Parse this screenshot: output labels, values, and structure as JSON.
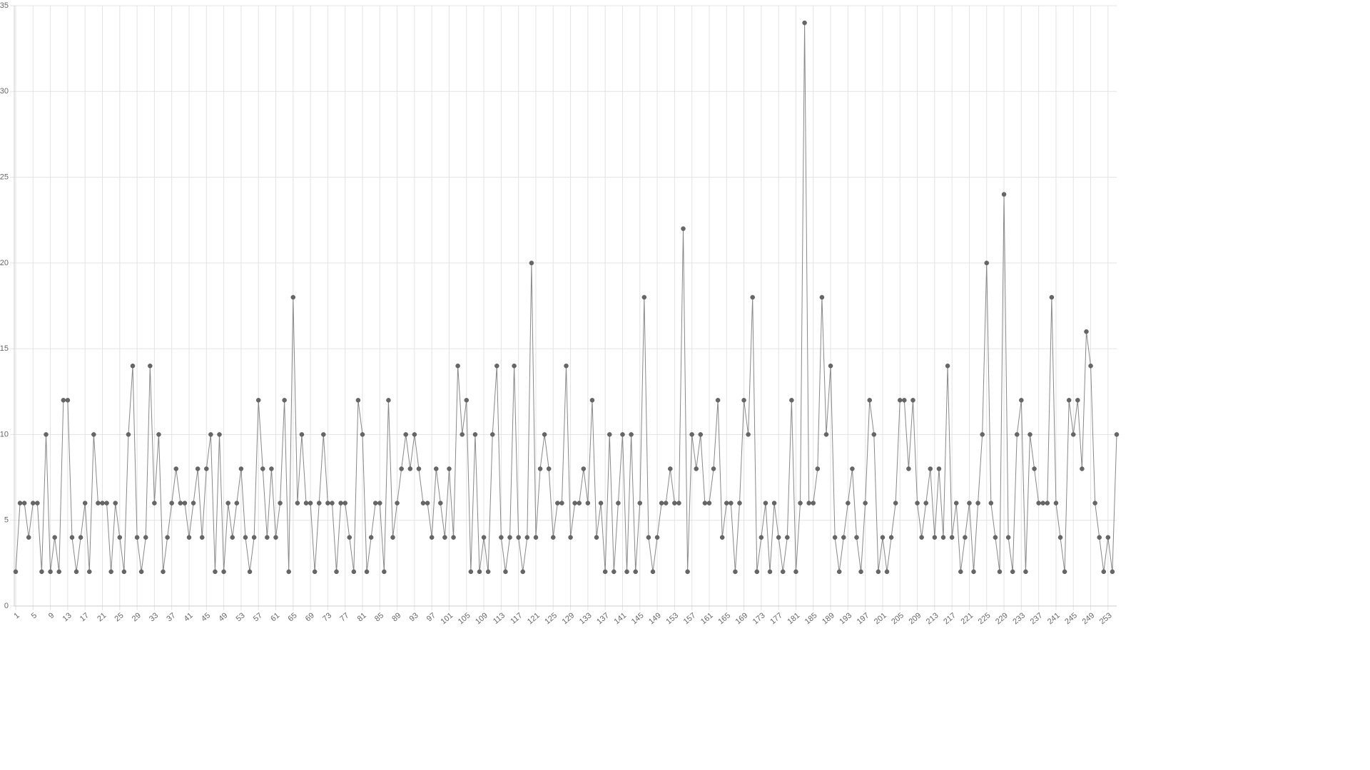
{
  "chart_data": {
    "type": "line",
    "categories": [
      1,
      null,
      null,
      null,
      5,
      null,
      null,
      null,
      9,
      null,
      null,
      null,
      13,
      null,
      null,
      null,
      17,
      null,
      null,
      null,
      21,
      null,
      null,
      null,
      25,
      null,
      null,
      null,
      29,
      null,
      null,
      null,
      33,
      null,
      null,
      null,
      37,
      null,
      null,
      null,
      41,
      null,
      null,
      null,
      45,
      null,
      null,
      null,
      49,
      null,
      null,
      null,
      53,
      null,
      null,
      null,
      57,
      null,
      null,
      null,
      61,
      null,
      null,
      null,
      65,
      null,
      null,
      null,
      69,
      null,
      null,
      null,
      73,
      null,
      null,
      null,
      77,
      null,
      null,
      null,
      81,
      null,
      null,
      null,
      85,
      null,
      null,
      null,
      89,
      null,
      null,
      null,
      93,
      null,
      null,
      null,
      97,
      null,
      null,
      null,
      101,
      null,
      null,
      null,
      105,
      null,
      null,
      null,
      109,
      null,
      null,
      null,
      113,
      null,
      null,
      null,
      117,
      null,
      null,
      null,
      121,
      null,
      null,
      null,
      125,
      null,
      null,
      null,
      129,
      null,
      null,
      null,
      133,
      null,
      null,
      null,
      137,
      null,
      null,
      null,
      141,
      null,
      null,
      null,
      145,
      null,
      null,
      null,
      149,
      null,
      null,
      null,
      153,
      null,
      null,
      null,
      157,
      null,
      null,
      null,
      161,
      null,
      null,
      null,
      165,
      null,
      null,
      null,
      169,
      null,
      null,
      null,
      173,
      null,
      null,
      null,
      177,
      null,
      null,
      null,
      181,
      null,
      null,
      null,
      185,
      null,
      null,
      null,
      189,
      null,
      null,
      null,
      193,
      null,
      null,
      null,
      197,
      null,
      null,
      null,
      201,
      null,
      null,
      null,
      205,
      null,
      null,
      null,
      209,
      null,
      null,
      null,
      213,
      null,
      null,
      null,
      217,
      null,
      null,
      null,
      221,
      null,
      null,
      null,
      225,
      null,
      null,
      null,
      229,
      null,
      null,
      null,
      233,
      null,
      null,
      null,
      237,
      null,
      null,
      null,
      241,
      null,
      null,
      null,
      245,
      null,
      null,
      null,
      249,
      null,
      null,
      null,
      253,
      null,
      null
    ],
    "series": [
      {
        "color": "#888888",
        "values": [
          2,
          6,
          6,
          4,
          6,
          6,
          2,
          10,
          2,
          4,
          2,
          12,
          12,
          4,
          2,
          4,
          6,
          2,
          10,
          6,
          6,
          6,
          2,
          6,
          4,
          2,
          10,
          14,
          4,
          2,
          4,
          14,
          6,
          10,
          2,
          4,
          6,
          8,
          6,
          6,
          4,
          6,
          8,
          4,
          8,
          10,
          2,
          10,
          2,
          6,
          4,
          6,
          8,
          4,
          2,
          4,
          12,
          8,
          4,
          8,
          4,
          6,
          12,
          2,
          18,
          6,
          10,
          6,
          6,
          2,
          6,
          10,
          6,
          6,
          2,
          6,
          6,
          4,
          2,
          12,
          10,
          2,
          4,
          6,
          6,
          2,
          12,
          4,
          6,
          8,
          10,
          8,
          10,
          8,
          6,
          6,
          4,
          8,
          6,
          4,
          8,
          4,
          14,
          10,
          12,
          2,
          10,
          2,
          4,
          2,
          10,
          14,
          4,
          2,
          4,
          14,
          4,
          2,
          4,
          20,
          4,
          8,
          10,
          8,
          4,
          6,
          6,
          14,
          4,
          6,
          6,
          8,
          6,
          12,
          4,
          6,
          2,
          10,
          2,
          6,
          10,
          2,
          10,
          2,
          6,
          18,
          4,
          2,
          4,
          6,
          6,
          8,
          6,
          6,
          22,
          2,
          10,
          8,
          10,
          6,
          6,
          8,
          12,
          4,
          6,
          6,
          2,
          6,
          12,
          10,
          18,
          2,
          4,
          6,
          2,
          6,
          4,
          2,
          4,
          12,
          2,
          6,
          34,
          6,
          6,
          8,
          18,
          10,
          14,
          4,
          2,
          4,
          6,
          8,
          4,
          2,
          6,
          12,
          10,
          2,
          4,
          2,
          4,
          6,
          12,
          12,
          8,
          12,
          6,
          4,
          6,
          8,
          4,
          8,
          4,
          14,
          4,
          6,
          2,
          4,
          6,
          2,
          6,
          10,
          20,
          6,
          4,
          2,
          24,
          4,
          2,
          10,
          12,
          2,
          10,
          8,
          6,
          6,
          6,
          18,
          6,
          4,
          2,
          12,
          10,
          12,
          8,
          16,
          14,
          6,
          4,
          2,
          4,
          2,
          10
        ]
      }
    ],
    "ylim": [
      0,
      35
    ],
    "yticks": [
      0,
      5,
      10,
      15,
      20,
      25,
      30,
      35
    ],
    "grid": true
  }
}
